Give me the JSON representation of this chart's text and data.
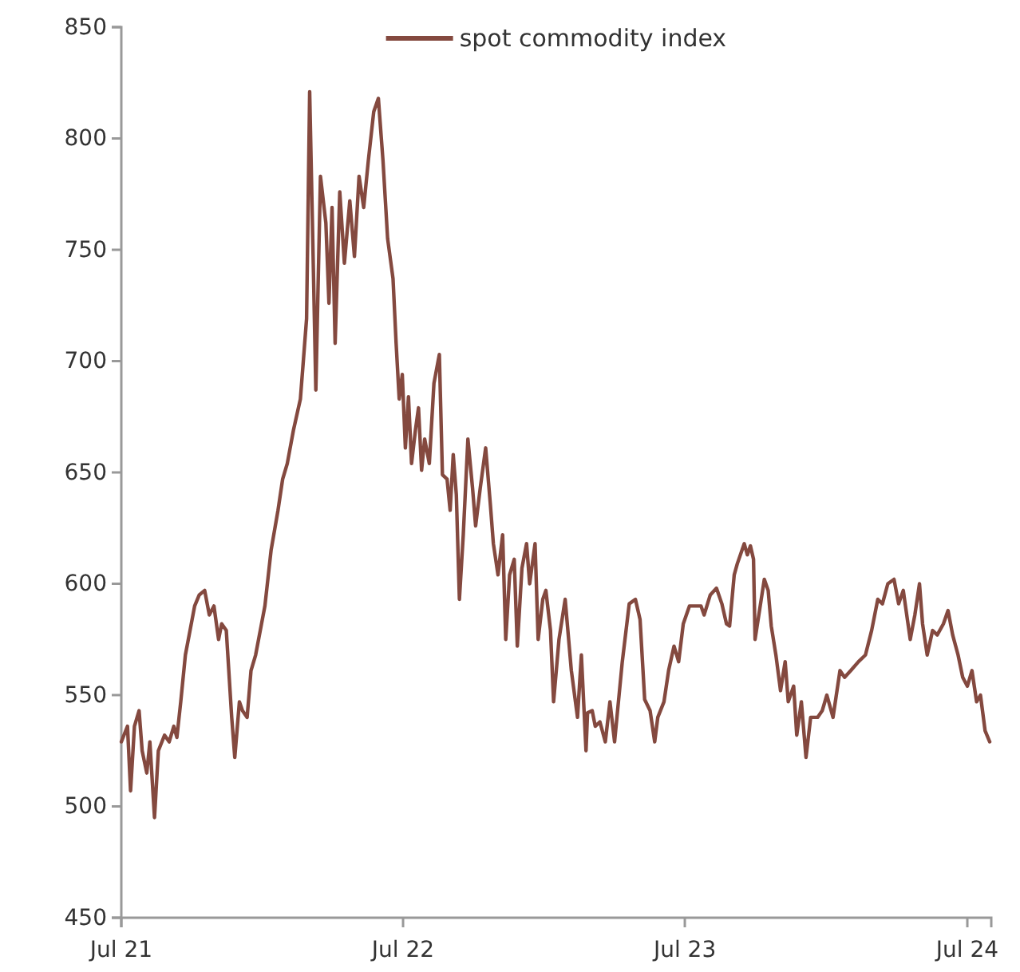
{
  "chart_data": {
    "type": "line",
    "legend": "top",
    "grid": false,
    "line_style": "solid",
    "marker": "none",
    "xlim": [
      "2021-07-01",
      "2024-08-01"
    ],
    "xticks": [
      {
        "value": "2021-07-01",
        "label": "Jul 21"
      },
      {
        "value": "2022-07-01",
        "label": "Jul 22"
      },
      {
        "value": "2023-07-01",
        "label": "Jul 23"
      },
      {
        "value": "2024-07-01",
        "label": "Jul 24"
      }
    ],
    "ylim": [
      450,
      850
    ],
    "yticks": [
      450,
      500,
      550,
      600,
      650,
      700,
      750,
      800,
      850
    ],
    "x": [
      "2021-07-01",
      "2021-07-09",
      "2021-07-13",
      "2021-07-18",
      "2021-07-24",
      "2021-07-28",
      "2021-08-03",
      "2021-08-07",
      "2021-08-13",
      "2021-08-18",
      "2021-08-26",
      "2021-09-01",
      "2021-09-07",
      "2021-09-11",
      "2021-09-16",
      "2021-09-22",
      "2021-09-28",
      "2021-10-04",
      "2021-10-10",
      "2021-10-17",
      "2021-10-23",
      "2021-10-29",
      "2021-11-04",
      "2021-11-08",
      "2021-11-14",
      "2021-11-21",
      "2021-11-25",
      "2021-12-01",
      "2021-12-05",
      "2021-12-11",
      "2021-12-16",
      "2021-12-22",
      "2021-12-28",
      "2022-01-03",
      "2022-01-11",
      "2022-01-20",
      "2022-01-26",
      "2022-02-01",
      "2022-02-09",
      "2022-02-18",
      "2022-02-22",
      "2022-02-26",
      "2022-03-02",
      "2022-03-06",
      "2022-03-10",
      "2022-03-16",
      "2022-03-23",
      "2022-03-27",
      "2022-03-31",
      "2022-04-04",
      "2022-04-10",
      "2022-04-16",
      "2022-04-23",
      "2022-04-29",
      "2022-05-05",
      "2022-05-11",
      "2022-05-17",
      "2022-05-24",
      "2022-05-30",
      "2022-06-05",
      "2022-06-11",
      "2022-06-18",
      "2022-06-22",
      "2022-06-26",
      "2022-06-30",
      "2022-07-04",
      "2022-07-08",
      "2022-07-12",
      "2022-07-17",
      "2022-07-21",
      "2022-07-25",
      "2022-07-29",
      "2022-08-04",
      "2022-08-10",
      "2022-08-17",
      "2022-08-21",
      "2022-08-27",
      "2022-08-31",
      "2022-09-04",
      "2022-09-08",
      "2022-09-12",
      "2022-09-17",
      "2022-09-23",
      "2022-09-29",
      "2022-10-03",
      "2022-10-09",
      "2022-10-16",
      "2022-10-22",
      "2022-10-26",
      "2022-11-01",
      "2022-11-07",
      "2022-11-11",
      "2022-11-16",
      "2022-11-22",
      "2022-11-26",
      "2022-12-02",
      "2022-12-08",
      "2022-12-12",
      "2022-12-19",
      "2022-12-23",
      "2022-12-29",
      "2023-01-02",
      "2023-01-08",
      "2023-01-12",
      "2023-01-19",
      "2023-01-27",
      "2023-02-04",
      "2023-02-12",
      "2023-02-17",
      "2023-02-23",
      "2023-02-25",
      "2023-03-03",
      "2023-03-07",
      "2023-03-13",
      "2023-03-20",
      "2023-03-26",
      "2023-04-01",
      "2023-04-11",
      "2023-04-20",
      "2023-04-28",
      "2023-05-04",
      "2023-05-10",
      "2023-05-17",
      "2023-05-23",
      "2023-05-27",
      "2023-06-04",
      "2023-06-10",
      "2023-06-17",
      "2023-06-23",
      "2023-06-29",
      "2023-07-07",
      "2023-07-15",
      "2023-07-22",
      "2023-07-26",
      "2023-08-03",
      "2023-08-11",
      "2023-08-18",
      "2023-08-24",
      "2023-08-28",
      "2023-09-03",
      "2023-09-07",
      "2023-09-16",
      "2023-09-20",
      "2023-09-24",
      "2023-09-28",
      "2023-09-30",
      "2023-10-08",
      "2023-10-12",
      "2023-10-17",
      "2023-10-21",
      "2023-10-27",
      "2023-11-02",
      "2023-11-08",
      "2023-11-12",
      "2023-11-19",
      "2023-11-23",
      "2023-11-29",
      "2023-12-05",
      "2023-12-11",
      "2023-12-20",
      "2023-12-26",
      "2024-01-01",
      "2024-01-09",
      "2024-01-18",
      "2024-01-24",
      "2024-02-01",
      "2024-02-11",
      "2024-02-20",
      "2024-02-28",
      "2024-03-07",
      "2024-03-13",
      "2024-03-20",
      "2024-03-28",
      "2024-04-03",
      "2024-04-09",
      "2024-04-18",
      "2024-04-24",
      "2024-04-30",
      "2024-05-04",
      "2024-05-10",
      "2024-05-17",
      "2024-05-23",
      "2024-05-31",
      "2024-06-06",
      "2024-06-12",
      "2024-06-19",
      "2024-06-25",
      "2024-07-01",
      "2024-07-07",
      "2024-07-13",
      "2024-07-18",
      "2024-07-24",
      "2024-07-30"
    ],
    "series": [
      {
        "name": "spot commodity index",
        "color": "#84493f",
        "values": [
          529,
          536,
          507,
          536,
          543,
          525,
          515,
          529,
          495,
          525,
          532,
          529,
          536,
          531,
          547,
          568,
          579,
          590,
          595,
          597,
          586,
          590,
          575,
          582,
          579,
          540,
          522,
          547,
          543,
          540,
          561,
          568,
          579,
          590,
          615,
          633,
          647,
          654,
          669,
          683,
          701,
          719,
          821,
          755,
          687,
          783,
          762,
          726,
          769,
          708,
          776,
          744,
          772,
          747,
          783,
          769,
          790,
          812,
          818,
          790,
          755,
          737,
          708,
          683,
          694,
          661,
          684,
          654,
          669,
          679,
          651,
          665,
          654,
          690,
          703,
          649,
          647,
          633,
          658,
          640,
          593,
          622,
          665,
          643,
          626,
          643,
          661,
          636,
          618,
          604,
          622,
          575,
          604,
          611,
          572,
          607,
          618,
          600,
          618,
          575,
          593,
          597,
          579,
          547,
          575,
          593,
          561,
          540,
          568,
          525,
          542,
          543,
          536,
          538,
          529,
          547,
          529,
          565,
          591,
          593,
          584,
          548,
          543,
          529,
          540,
          547,
          561,
          572,
          565,
          582,
          590,
          590,
          590,
          586,
          595,
          598,
          591,
          582,
          581,
          604,
          609,
          618,
          613,
          617,
          611,
          575,
          593,
          602,
          597,
          581,
          568,
          552,
          565,
          547,
          554,
          532,
          547,
          522,
          540,
          540,
          543,
          550,
          540,
          561,
          558,
          561,
          565,
          568,
          579,
          593,
          591,
          600,
          602,
          591,
          597,
          575,
          586,
          600,
          582,
          568,
          579,
          577,
          582,
          588,
          577,
          568,
          558,
          554,
          561,
          547,
          550,
          534,
          529
        ]
      }
    ]
  }
}
